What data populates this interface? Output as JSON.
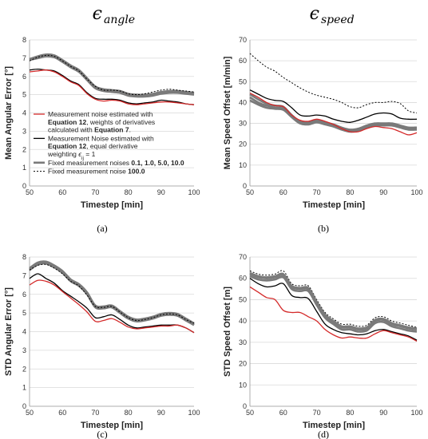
{
  "column_headers": [
    {
      "symbol": "ϵ",
      "subscript": "angle"
    },
    {
      "symbol": "ϵ",
      "subscript": "speed"
    }
  ],
  "legend": [
    {
      "key": "red",
      "color": "#d42a2a",
      "dash": "",
      "width": 1.3,
      "lines": [
        [
          {
            "t": "Measurement noise estimated with",
            "b": false
          }
        ],
        [
          {
            "t": "Equation 12",
            "b": true
          },
          {
            "t": ", weights of derivatives",
            "b": false
          }
        ],
        [
          {
            "t": "calculated with ",
            "b": false
          },
          {
            "t": "Equation 7",
            "b": true
          },
          {
            "t": ".",
            "b": false
          }
        ]
      ]
    },
    {
      "key": "black",
      "color": "#000000",
      "dash": "",
      "width": 1.3,
      "lines": [
        [
          {
            "t": "Measurement Noise estimated with",
            "b": false
          }
        ],
        [
          {
            "t": "Equation 12",
            "b": true
          },
          {
            "t": ", equal derivative",
            "b": false
          }
        ],
        [
          {
            "t": "weighting ",
            "b": false
          },
          {
            "t": "ϵ",
            "b": false,
            "i": true
          },
          {
            "t": "ij",
            "b": false,
            "sub": true
          },
          {
            "t": " = 1",
            "b": false
          }
        ]
      ]
    },
    {
      "key": "gray",
      "color": "#7a7a7a",
      "dash": "",
      "width": 2.6,
      "lines": [
        [
          {
            "t": "Fixed measurement noises ",
            "b": false
          },
          {
            "t": "0.1, 1.0, 5.0, 10.0",
            "b": true
          }
        ]
      ]
    },
    {
      "key": "dotted",
      "color": "#000000",
      "dash": "2,2",
      "width": 1.0,
      "lines": [
        [
          {
            "t": "Fixed measurement noise ",
            "b": false
          },
          {
            "t": "100.0",
            "b": true
          }
        ]
      ]
    }
  ],
  "chart_data": [
    {
      "type": "line",
      "panel_label": "(a)",
      "xlabel": "Timestep [min]",
      "ylabel": "Mean Angular Error [°]",
      "xlim": [
        50,
        100
      ],
      "ylim": [
        0,
        8
      ],
      "xticks": [
        50,
        60,
        70,
        80,
        90,
        100
      ],
      "yticks": [
        0,
        1,
        2,
        3,
        4,
        5,
        6,
        7,
        8
      ],
      "x": [
        50,
        52.5,
        55,
        57.5,
        60,
        62.5,
        65,
        67.5,
        70,
        72.5,
        75,
        77.5,
        80,
        82.5,
        85,
        87.5,
        90,
        92.5,
        95,
        97.5,
        100
      ],
      "series": [
        {
          "key": "gray",
          "values": [
            6.95,
            7.05,
            7.15,
            7.1,
            6.85,
            6.55,
            6.3,
            5.85,
            5.4,
            5.25,
            5.2,
            5.15,
            5.0,
            4.95,
            4.95,
            5.0,
            5.1,
            5.15,
            5.15,
            5.1,
            5.05
          ]
        },
        {
          "key": "gray",
          "values": [
            6.9,
            7.0,
            7.1,
            7.05,
            6.8,
            6.5,
            6.25,
            5.8,
            5.35,
            5.2,
            5.15,
            5.1,
            4.95,
            4.9,
            4.9,
            4.95,
            5.05,
            5.1,
            5.1,
            5.05,
            5.0
          ]
        },
        {
          "key": "gray",
          "values": [
            6.95,
            7.1,
            7.2,
            7.15,
            6.9,
            6.6,
            6.35,
            5.9,
            5.45,
            5.3,
            5.25,
            5.2,
            5.05,
            5.0,
            5.0,
            5.05,
            5.15,
            5.2,
            5.2,
            5.15,
            5.1
          ]
        },
        {
          "key": "dotted",
          "values": [
            6.85,
            7.05,
            7.15,
            7.1,
            6.85,
            6.55,
            6.3,
            5.85,
            5.45,
            5.25,
            5.25,
            5.2,
            5.05,
            5.0,
            5.05,
            5.15,
            5.25,
            5.3,
            5.25,
            5.2,
            5.15
          ]
        },
        {
          "key": "black",
          "values": [
            6.35,
            6.4,
            6.35,
            6.3,
            6.05,
            5.75,
            5.55,
            5.1,
            4.8,
            4.75,
            4.75,
            4.7,
            4.55,
            4.5,
            4.55,
            4.6,
            4.7,
            4.65,
            4.6,
            4.5,
            4.45
          ]
        },
        {
          "key": "red",
          "values": [
            6.25,
            6.3,
            6.35,
            6.25,
            6.0,
            5.7,
            5.5,
            5.05,
            4.75,
            4.65,
            4.7,
            4.65,
            4.5,
            4.45,
            4.5,
            4.55,
            4.6,
            4.6,
            4.55,
            4.5,
            4.45
          ]
        }
      ]
    },
    {
      "type": "line",
      "panel_label": "(b)",
      "xlabel": "Timestep [min]",
      "ylabel": "Mean Speed Offset [m/min]",
      "xlim": [
        50,
        100
      ],
      "ylim": [
        0,
        70
      ],
      "xticks": [
        50,
        60,
        70,
        80,
        90,
        100
      ],
      "yticks": [
        0,
        10,
        20,
        30,
        40,
        50,
        60,
        70
      ],
      "x": [
        50,
        52.5,
        55,
        57.5,
        60,
        62.5,
        65,
        67.5,
        70,
        72.5,
        75,
        77.5,
        80,
        82.5,
        85,
        87.5,
        90,
        92.5,
        95,
        97.5,
        100
      ],
      "series": [
        {
          "key": "dotted",
          "values": [
            63.5,
            60,
            57,
            55,
            52,
            49.5,
            47,
            45,
            43.5,
            42.5,
            41.5,
            40,
            38,
            37.5,
            39,
            40,
            40,
            40.5,
            39.5,
            36,
            35
          ]
        },
        {
          "key": "black",
          "values": [
            46,
            44,
            42,
            41,
            40.5,
            37.5,
            34,
            33.5,
            34,
            33.5,
            32,
            31,
            30.5,
            31.5,
            33,
            34.5,
            35,
            34.5,
            32.5,
            32,
            32
          ]
        },
        {
          "key": "gray",
          "values": [
            44,
            41.5,
            39.5,
            38.5,
            38,
            34,
            31,
            30.5,
            31.5,
            30.5,
            29.5,
            28,
            27,
            27.5,
            29,
            30,
            30,
            30,
            29,
            28,
            28
          ]
        },
        {
          "key": "gray",
          "values": [
            42.5,
            40,
            38.5,
            37.5,
            37,
            33.5,
            30.5,
            30,
            31,
            30,
            29,
            27.5,
            26.5,
            27,
            28.5,
            29.5,
            29.5,
            29.5,
            28.5,
            27.5,
            27.5
          ]
        },
        {
          "key": "gray",
          "values": [
            41,
            39,
            37.5,
            37,
            36.5,
            33,
            30,
            29.5,
            30.5,
            29.5,
            28.5,
            27,
            26,
            26.5,
            28,
            29,
            29,
            29,
            28,
            27,
            27
          ]
        },
        {
          "key": "red",
          "values": [
            44.5,
            42.5,
            40,
            38.5,
            38,
            34,
            31.5,
            31,
            32,
            31,
            29.5,
            27.5,
            26,
            26,
            27.5,
            28.5,
            28,
            27.5,
            26,
            24.5,
            25.5
          ]
        }
      ]
    },
    {
      "type": "line",
      "panel_label": "(c)",
      "xlabel": "Timestep [min]",
      "ylabel": "STD Angular Error [°]",
      "xlim": [
        50,
        100
      ],
      "ylim": [
        0,
        8
      ],
      "xticks": [
        50,
        60,
        70,
        80,
        90,
        100
      ],
      "yticks": [
        0,
        1,
        2,
        3,
        4,
        5,
        6,
        7,
        8
      ],
      "x": [
        50,
        52.5,
        55,
        57.5,
        60,
        62.5,
        65,
        67.5,
        70,
        72.5,
        75,
        77.5,
        80,
        82.5,
        85,
        87.5,
        90,
        92.5,
        95,
        97.5,
        100
      ],
      "series": [
        {
          "key": "gray",
          "values": [
            7.3,
            7.6,
            7.65,
            7.45,
            7.15,
            6.7,
            6.45,
            6.0,
            5.3,
            5.25,
            5.3,
            5.0,
            4.7,
            4.55,
            4.6,
            4.7,
            4.85,
            4.9,
            4.85,
            4.6,
            4.35
          ]
        },
        {
          "key": "gray",
          "values": [
            7.35,
            7.65,
            7.7,
            7.5,
            7.2,
            6.75,
            6.5,
            6.05,
            5.35,
            5.3,
            5.35,
            5.05,
            4.75,
            4.6,
            4.65,
            4.75,
            4.9,
            4.95,
            4.9,
            4.65,
            4.4
          ]
        },
        {
          "key": "gray",
          "values": [
            7.4,
            7.7,
            7.75,
            7.55,
            7.25,
            6.8,
            6.55,
            6.1,
            5.4,
            5.35,
            5.4,
            5.1,
            4.8,
            4.65,
            4.7,
            4.8,
            4.95,
            5.0,
            4.95,
            4.7,
            4.45
          ]
        },
        {
          "key": "dotted",
          "values": [
            7.3,
            7.55,
            7.6,
            7.4,
            7.1,
            6.7,
            6.45,
            5.95,
            5.35,
            5.3,
            5.35,
            5.05,
            4.75,
            4.6,
            4.65,
            4.75,
            4.9,
            4.95,
            4.9,
            4.65,
            4.45
          ]
        },
        {
          "key": "black",
          "values": [
            6.85,
            7.1,
            6.85,
            6.6,
            6.2,
            5.9,
            5.6,
            5.25,
            4.75,
            4.8,
            4.9,
            4.65,
            4.35,
            4.2,
            4.25,
            4.3,
            4.35,
            4.35,
            4.35,
            4.2,
            3.95
          ]
        },
        {
          "key": "red",
          "values": [
            6.5,
            6.75,
            6.7,
            6.5,
            6.15,
            5.8,
            5.45,
            5.05,
            4.55,
            4.6,
            4.7,
            4.5,
            4.25,
            4.15,
            4.2,
            4.25,
            4.3,
            4.3,
            4.35,
            4.2,
            3.95
          ]
        }
      ]
    },
    {
      "type": "line",
      "panel_label": "(d)",
      "xlabel": "Timestep [min]",
      "ylabel": "STD Speed Offset [m]",
      "xlim": [
        50,
        100
      ],
      "ylim": [
        0,
        70
      ],
      "xticks": [
        50,
        60,
        70,
        80,
        90,
        100
      ],
      "yticks": [
        0,
        10,
        20,
        30,
        40,
        50,
        60,
        70
      ],
      "x": [
        50,
        52.5,
        55,
        57.5,
        60,
        62.5,
        65,
        67.5,
        70,
        72.5,
        75,
        77.5,
        80,
        82.5,
        85,
        87.5,
        90,
        92.5,
        95,
        97.5,
        100
      ],
      "series": [
        {
          "key": "dotted",
          "values": [
            63.5,
            62,
            61.5,
            62,
            63.5,
            57.5,
            56.5,
            56.5,
            50,
            44,
            41,
            38.5,
            38.5,
            37.5,
            38,
            41.5,
            42,
            40,
            39,
            38,
            37
          ]
        },
        {
          "key": "gray",
          "values": [
            62,
            60.5,
            60,
            60.5,
            61.5,
            56,
            55,
            55,
            48.5,
            42.5,
            39.5,
            37,
            37,
            36,
            36.5,
            40,
            40.5,
            38.5,
            37.5,
            36.5,
            36
          ]
        },
        {
          "key": "gray",
          "values": [
            61,
            59.5,
            59,
            59.5,
            60.5,
            55,
            54,
            54,
            47.5,
            41.5,
            38.5,
            36,
            36,
            35,
            35.5,
            39,
            39.5,
            37.5,
            36.5,
            35.5,
            35
          ]
        },
        {
          "key": "gray",
          "values": [
            62.5,
            61,
            60.5,
            61,
            62,
            56.5,
            55.5,
            55.5,
            49,
            43,
            40,
            37.5,
            37.5,
            36.5,
            37,
            40.5,
            41,
            39,
            38,
            37,
            36.5
          ]
        },
        {
          "key": "black",
          "values": [
            60,
            57.5,
            56,
            56.5,
            57.5,
            52,
            51,
            50.5,
            44.5,
            38.5,
            36,
            34.5,
            34,
            33.5,
            34,
            35.5,
            36,
            35,
            34,
            33,
            31
          ]
        },
        {
          "key": "red",
          "values": [
            56,
            53.5,
            51,
            50,
            45,
            44,
            44,
            42,
            40,
            36,
            33.5,
            32,
            32.5,
            32,
            32,
            34,
            35.5,
            34.5,
            33.5,
            32.5,
            30.5
          ]
        }
      ]
    }
  ]
}
